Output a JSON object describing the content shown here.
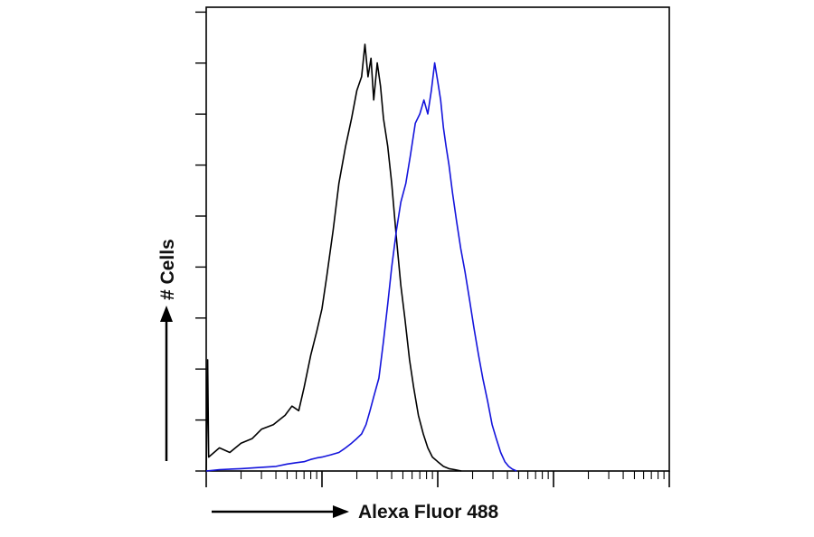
{
  "chart_data": {
    "type": "line",
    "title": "",
    "xlabel": "Alexa Fluor 488",
    "ylabel": "# Cells",
    "x_scale": "log",
    "xlim": [
      1,
      10000
    ],
    "ylim": [
      0,
      100
    ],
    "grid": false,
    "legend": "none",
    "series": [
      {
        "color": "#000000",
        "points": [
          [
            1.0,
            0
          ],
          [
            1.03,
            24
          ],
          [
            1.05,
            3
          ],
          [
            1.3,
            5
          ],
          [
            1.6,
            4
          ],
          [
            2.0,
            6
          ],
          [
            2.5,
            7
          ],
          [
            3.0,
            9
          ],
          [
            3.8,
            10
          ],
          [
            4.8,
            12
          ],
          [
            5.5,
            14
          ],
          [
            6.3,
            13
          ],
          [
            7.0,
            18
          ],
          [
            8.0,
            25
          ],
          [
            9.0,
            30
          ],
          [
            10.0,
            35
          ],
          [
            11.0,
            42
          ],
          [
            12.5,
            52
          ],
          [
            14.0,
            62
          ],
          [
            16.0,
            70
          ],
          [
            18.0,
            76
          ],
          [
            20.0,
            82
          ],
          [
            22.0,
            85
          ],
          [
            23.5,
            92
          ],
          [
            25.0,
            85
          ],
          [
            26.5,
            89
          ],
          [
            28.0,
            80
          ],
          [
            30.0,
            88
          ],
          [
            32.0,
            83
          ],
          [
            34.0,
            76
          ],
          [
            37.0,
            70
          ],
          [
            40.0,
            62
          ],
          [
            44.0,
            50
          ],
          [
            48.0,
            40
          ],
          [
            52.0,
            33
          ],
          [
            57.0,
            24
          ],
          [
            62.0,
            18
          ],
          [
            68.0,
            12
          ],
          [
            75.0,
            8
          ],
          [
            82.0,
            5
          ],
          [
            90.0,
            3
          ],
          [
            100.0,
            2
          ],
          [
            112.0,
            1
          ],
          [
            125.0,
            0.5
          ],
          [
            140.0,
            0.3
          ],
          [
            160.0,
            0
          ]
        ]
      },
      {
        "color": "#1414dc",
        "points": [
          [
            1.0,
            0
          ],
          [
            1.3,
            0.3
          ],
          [
            2.0,
            0.5
          ],
          [
            3.0,
            0.8
          ],
          [
            4.0,
            1.0
          ],
          [
            5.0,
            1.5
          ],
          [
            6.0,
            1.8
          ],
          [
            7.0,
            2.0
          ],
          [
            8.0,
            2.5
          ],
          [
            9.0,
            2.8
          ],
          [
            10.0,
            3.0
          ],
          [
            12.0,
            3.5
          ],
          [
            14.0,
            4.0
          ],
          [
            16.0,
            5.0
          ],
          [
            18.0,
            6.0
          ],
          [
            20.0,
            7.0
          ],
          [
            22.0,
            8.0
          ],
          [
            24.0,
            10.0
          ],
          [
            26.0,
            13.0
          ],
          [
            28.0,
            16.0
          ],
          [
            31.0,
            20.0
          ],
          [
            34.0,
            28.0
          ],
          [
            37.0,
            36.0
          ],
          [
            40.0,
            44.0
          ],
          [
            44.0,
            52.0
          ],
          [
            48.0,
            58.0
          ],
          [
            53.0,
            62.0
          ],
          [
            58.0,
            68.0
          ],
          [
            64.0,
            75.0
          ],
          [
            70.0,
            77.0
          ],
          [
            76.0,
            80.0
          ],
          [
            82.0,
            77.0
          ],
          [
            88.0,
            82.0
          ],
          [
            94.0,
            88.0
          ],
          [
            100.0,
            84.0
          ],
          [
            106.0,
            80.0
          ],
          [
            112.0,
            74.0
          ],
          [
            118.0,
            70.0
          ],
          [
            125.0,
            66.0
          ],
          [
            134.0,
            60.0
          ],
          [
            145.0,
            54.0
          ],
          [
            158.0,
            48.0
          ],
          [
            172.0,
            43.0
          ],
          [
            188.0,
            37.0
          ],
          [
            205.0,
            31.0
          ],
          [
            225.0,
            25.0
          ],
          [
            245.0,
            20.0
          ],
          [
            270.0,
            15.0
          ],
          [
            295.0,
            10.0
          ],
          [
            320.0,
            7.0
          ],
          [
            350.0,
            4.0
          ],
          [
            380.0,
            2.0
          ],
          [
            410.0,
            1.0
          ],
          [
            440.0,
            0.4
          ],
          [
            480.0,
            0
          ]
        ]
      }
    ]
  }
}
